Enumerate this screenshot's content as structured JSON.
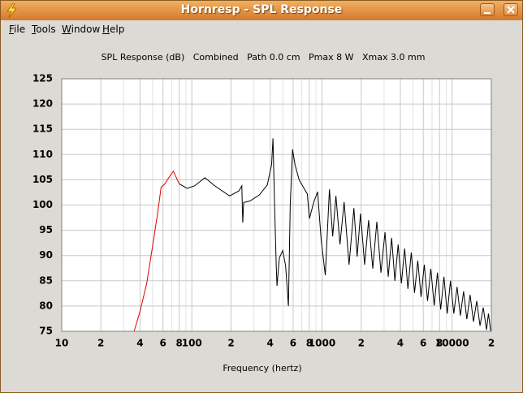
{
  "window": {
    "title": "Hornresp - SPL Response",
    "menu": [
      "File",
      "Tools",
      "Window",
      "Help"
    ]
  },
  "chart_data": {
    "type": "line",
    "title": "SPL Response (dB)   Combined   Path 0.0 cm   Pmax 8 W   Xmax 3.0 mm",
    "x_label": "Frequency (hertz)",
    "x_scale": "log",
    "grid": true,
    "xlim": [
      10,
      20000
    ],
    "xticks": [
      10,
      {
        "value": 20,
        "label": "2"
      },
      {
        "value": 40,
        "label": "4"
      },
      {
        "value": 60,
        "label": "6"
      },
      {
        "value": 80,
        "label": "8"
      },
      100,
      {
        "value": 200,
        "label": "2"
      },
      {
        "value": 400,
        "label": "4"
      },
      {
        "value": 600,
        "label": "6"
      },
      {
        "value": 800,
        "label": "8"
      },
      1000,
      {
        "value": 2000,
        "label": "2"
      },
      {
        "value": 4000,
        "label": "4"
      },
      {
        "value": 6000,
        "label": "6"
      },
      {
        "value": 8000,
        "label": "8"
      },
      10000,
      {
        "value": 20000,
        "label": "2"
      }
    ],
    "x_minor_ticks": [
      30,
      50,
      70,
      90,
      300,
      500,
      700,
      900,
      3000,
      5000,
      7000,
      9000
    ],
    "ylim": [
      75,
      125
    ],
    "yticks": [
      75,
      80,
      85,
      90,
      95,
      100,
      105,
      110,
      115,
      120,
      125
    ],
    "series": [
      {
        "color": "#e00000",
        "x": [
          36,
          40,
          45,
          50,
          55,
          58,
          62,
          66,
          72,
          80
        ],
        "values": [
          75,
          79,
          84.5,
          92,
          99,
          103.5,
          104.2,
          105.3,
          106.7,
          104.2
        ]
      },
      {
        "color": "#000000",
        "x": [
          80,
          92,
          105,
          126,
          150,
          195,
          230,
          242,
          246,
          250,
          280,
          330,
          380,
          410,
          420,
          432,
          445,
          451,
          470,
          499,
          525,
          552,
          570,
          594,
          620,
          667,
          720,
          771,
          800,
          865,
          925,
          986,
          1060,
          1140,
          1208,
          1279,
          1374,
          1479,
          1614,
          1758,
          1862,
          1977,
          2125,
          2281,
          2455,
          2638,
          2838,
          3048,
          3228,
          3428,
          3631,
          3846,
          4074,
          4315,
          4571,
          4853,
          5140,
          5445,
          5768,
          6109,
          6471,
          6855,
          7278,
          7709,
          8166,
          8650,
          9162,
          9705,
          10300,
          10910,
          11560,
          12240,
          12970,
          13740,
          14580,
          15450,
          16370,
          17340,
          18370,
          19000,
          19800
        ],
        "values": [
          104.2,
          103.3,
          103.8,
          105.4,
          103.8,
          101.8,
          102.8,
          103.8,
          96.5,
          100.5,
          100.8,
          102,
          104,
          108,
          113.2,
          100,
          88,
          84,
          89.5,
          91,
          88,
          80,
          100,
          111,
          108,
          105,
          103.5,
          102.2,
          97.3,
          100.6,
          102.6,
          93,
          86.1,
          103.1,
          93.8,
          101.8,
          92.2,
          100.6,
          88.2,
          99.4,
          89.8,
          98.3,
          88.2,
          97.0,
          87.4,
          96.7,
          86.6,
          94.6,
          85.8,
          93.5,
          85.0,
          92.2,
          84.5,
          91.4,
          83.4,
          90.6,
          82.6,
          89.0,
          81.8,
          88.2,
          81.0,
          87.4,
          80.1,
          86.6,
          79.3,
          85.8,
          78.5,
          85.0,
          78.5,
          83.8,
          78.1,
          82.9,
          77.4,
          82.2,
          76.9,
          81.0,
          76.1,
          79.7,
          75.3,
          78.5,
          75.0
        ]
      }
    ]
  }
}
